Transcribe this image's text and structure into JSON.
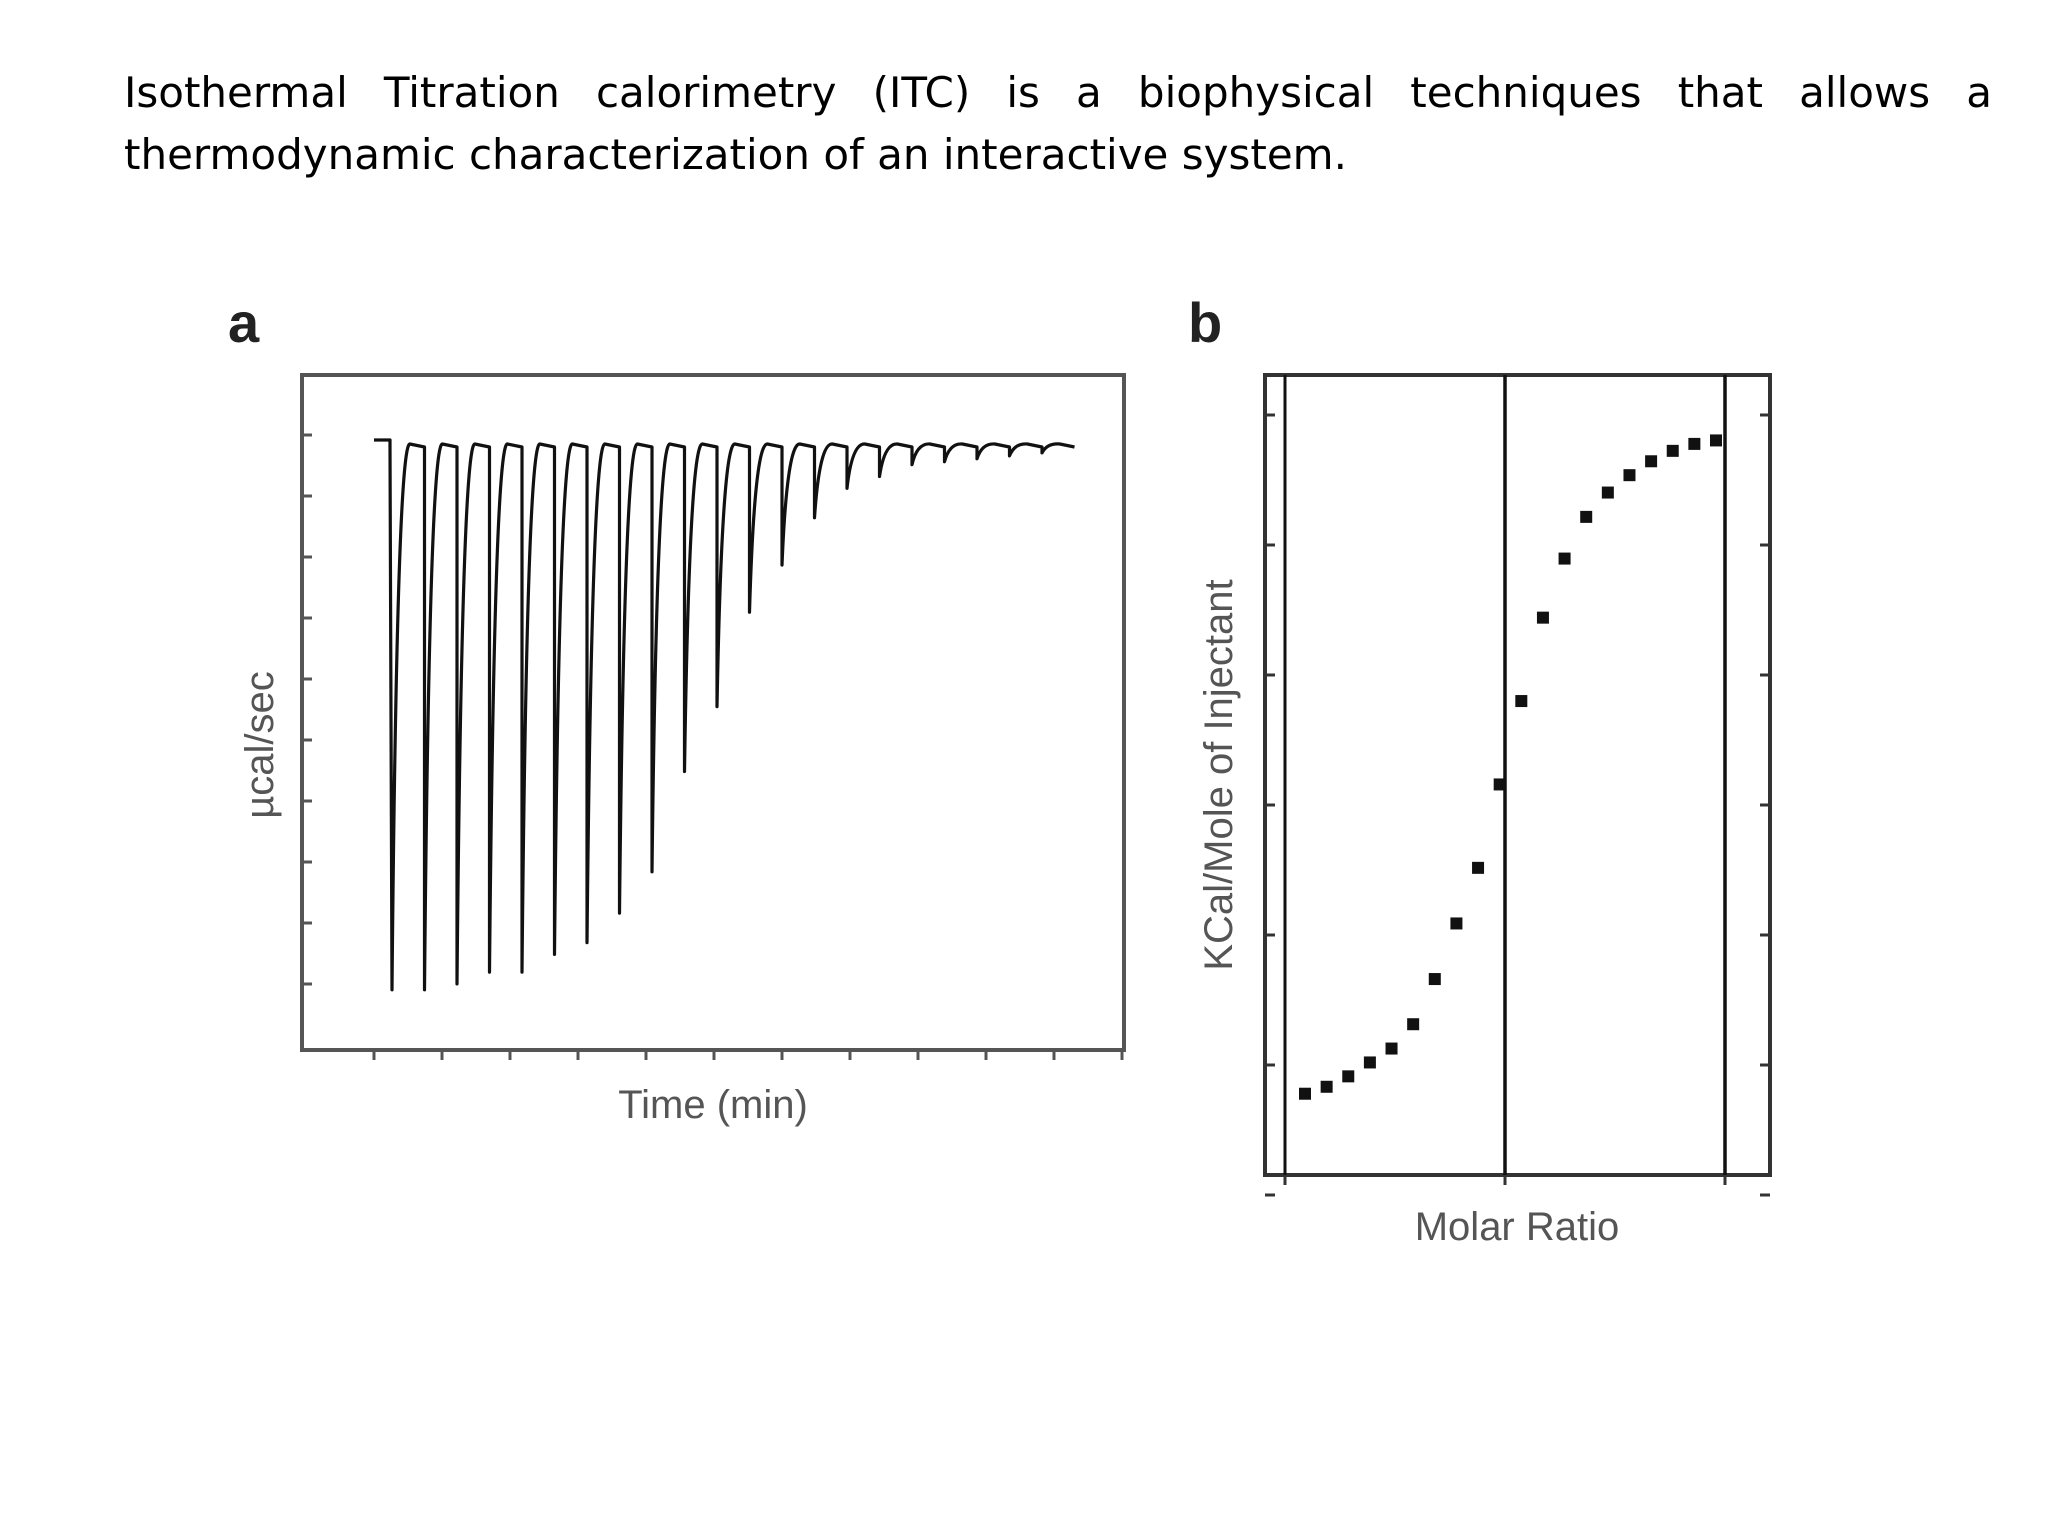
{
  "slide": {
    "text": "Isothermal Titration calorimetry (ITC) is a biophysical techniques that allows a thermodynamic characterization of an interactive system."
  },
  "chart_data": [
    {
      "panel": "a",
      "type": "line",
      "xlabel": "Time (min)",
      "ylabel": "µcal/sec",
      "grid": false,
      "injection_count": 21,
      "peak_depths": [
        0.92,
        0.92,
        0.91,
        0.89,
        0.89,
        0.86,
        0.84,
        0.79,
        0.72,
        0.55,
        0.44,
        0.28,
        0.2,
        0.12,
        0.07,
        0.05,
        0.03,
        0.025,
        0.02,
        0.015,
        0.01
      ]
    },
    {
      "panel": "b",
      "type": "scatter",
      "xlabel": "Molar Ratio",
      "ylabel": "KCal/Mole of Injectant",
      "grid": false,
      "x": [
        0.1,
        0.2,
        0.3,
        0.4,
        0.5,
        0.6,
        0.7,
        0.8,
        0.9,
        1.0,
        1.1,
        1.2,
        1.3,
        1.4,
        1.5,
        1.6,
        1.7,
        1.8,
        1.9,
        2.0
      ],
      "y": [
        0.045,
        0.055,
        0.07,
        0.09,
        0.11,
        0.145,
        0.21,
        0.29,
        0.37,
        0.49,
        0.61,
        0.73,
        0.815,
        0.875,
        0.91,
        0.935,
        0.955,
        0.97,
        0.98,
        0.985
      ],
      "reference_lines_x": [
        1.0,
        2.0
      ]
    }
  ]
}
